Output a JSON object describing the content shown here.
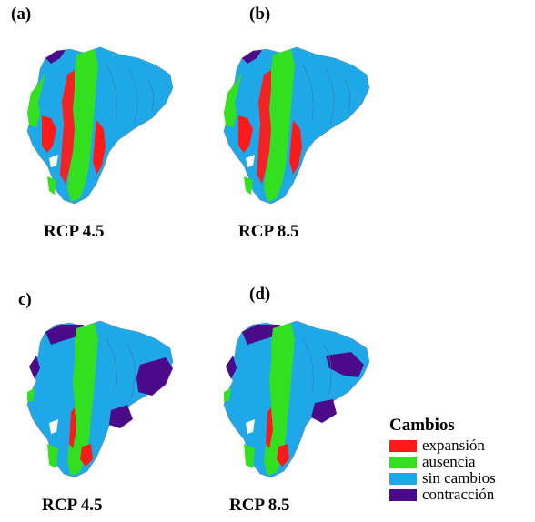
{
  "panels": [
    {
      "label": "(a)",
      "scenario": "RCP 4.5",
      "variant": "top"
    },
    {
      "label": "(b)",
      "scenario": "RCP 8.5",
      "variant": "top"
    },
    {
      "label": "c)",
      "scenario": "RCP 4.5",
      "variant": "bottom"
    },
    {
      "label": "(d)",
      "scenario": "RCP 8.5",
      "variant": "bottom"
    }
  ],
  "legend": {
    "title": "Cambios",
    "items": [
      {
        "label": "expansión",
        "color": "#ff1a1a"
      },
      {
        "label": "ausencia",
        "color": "#33e01f"
      },
      {
        "label": "sin cambios",
        "color": "#1fa8e8"
      },
      {
        "label": "contracción",
        "color": "#4a0a8a"
      }
    ]
  }
}
